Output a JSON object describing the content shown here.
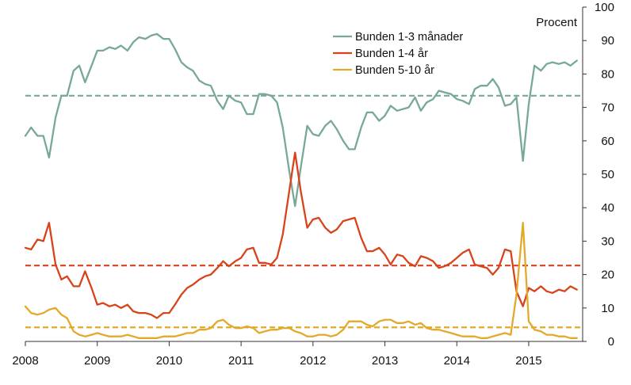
{
  "chart_data": {
    "type": "line",
    "ylabel": "Procent",
    "ylim": [
      0,
      100
    ],
    "y_ticks": [
      "0",
      "10",
      "20",
      "30",
      "40",
      "50",
      "60",
      "70",
      "80",
      "90",
      "100"
    ],
    "x_ticks": [
      "2008",
      "2009",
      "2010",
      "2011",
      "2012",
      "2013",
      "2014",
      "2015"
    ],
    "xlim": [
      2008.0,
      2015.75
    ],
    "grid": false,
    "legend_position": "top-center",
    "series": [
      {
        "name": "Bunden 1-3 månader",
        "color": "#77a898",
        "avg": 73.5,
        "points": [
          [
            2008.0,
            61.5
          ],
          [
            2008.08,
            64
          ],
          [
            2008.17,
            61.5
          ],
          [
            2008.25,
            61.5
          ],
          [
            2008.33,
            55
          ],
          [
            2008.42,
            67
          ],
          [
            2008.5,
            73.5
          ],
          [
            2008.58,
            73.5
          ],
          [
            2008.67,
            81
          ],
          [
            2008.75,
            82.5
          ],
          [
            2008.83,
            77.5
          ],
          [
            2008.92,
            82.5
          ],
          [
            2009.0,
            87
          ],
          [
            2009.08,
            87
          ],
          [
            2009.17,
            88
          ],
          [
            2009.25,
            87.5
          ],
          [
            2009.33,
            88.5
          ],
          [
            2009.42,
            87
          ],
          [
            2009.5,
            89.5
          ],
          [
            2009.58,
            91
          ],
          [
            2009.67,
            90.5
          ],
          [
            2009.75,
            91.5
          ],
          [
            2009.83,
            92
          ],
          [
            2009.92,
            90.5
          ],
          [
            2010.0,
            90.5
          ],
          [
            2010.08,
            87.5
          ],
          [
            2010.17,
            83.5
          ],
          [
            2010.25,
            82
          ],
          [
            2010.33,
            81
          ],
          [
            2010.42,
            78
          ],
          [
            2010.5,
            77
          ],
          [
            2010.58,
            76.5
          ],
          [
            2010.67,
            72
          ],
          [
            2010.75,
            69.5
          ],
          [
            2010.83,
            73.5
          ],
          [
            2010.92,
            72
          ],
          [
            2011.0,
            71.5
          ],
          [
            2011.08,
            68
          ],
          [
            2011.17,
            68
          ],
          [
            2011.25,
            74
          ],
          [
            2011.33,
            74
          ],
          [
            2011.42,
            73.5
          ],
          [
            2011.5,
            71.5
          ],
          [
            2011.58,
            64
          ],
          [
            2011.67,
            51
          ],
          [
            2011.75,
            40.5
          ],
          [
            2011.83,
            52
          ],
          [
            2011.92,
            64.5
          ],
          [
            2012.0,
            62
          ],
          [
            2012.08,
            61.5
          ],
          [
            2012.17,
            64.5
          ],
          [
            2012.25,
            66
          ],
          [
            2012.33,
            63.5
          ],
          [
            2012.42,
            60
          ],
          [
            2012.5,
            57.5
          ],
          [
            2012.58,
            57.5
          ],
          [
            2012.67,
            64
          ],
          [
            2012.75,
            68.5
          ],
          [
            2012.83,
            68.5
          ],
          [
            2012.92,
            66
          ],
          [
            2013.0,
            67.5
          ],
          [
            2013.08,
            70.5
          ],
          [
            2013.17,
            69
          ],
          [
            2013.25,
            69.5
          ],
          [
            2013.33,
            70
          ],
          [
            2013.42,
            73
          ],
          [
            2013.5,
            69
          ],
          [
            2013.58,
            71.5
          ],
          [
            2013.67,
            72.5
          ],
          [
            2013.75,
            75
          ],
          [
            2013.83,
            74.5
          ],
          [
            2013.92,
            74
          ],
          [
            2014.0,
            72.5
          ],
          [
            2014.08,
            72
          ],
          [
            2014.17,
            71
          ],
          [
            2014.25,
            75.5
          ],
          [
            2014.33,
            76.5
          ],
          [
            2014.42,
            76.5
          ],
          [
            2014.5,
            78.5
          ],
          [
            2014.58,
            76
          ],
          [
            2014.67,
            70.5
          ],
          [
            2014.75,
            71
          ],
          [
            2014.83,
            73
          ],
          [
            2014.92,
            54
          ],
          [
            2015.0,
            71
          ],
          [
            2015.08,
            82.5
          ],
          [
            2015.17,
            81
          ],
          [
            2015.25,
            83
          ],
          [
            2015.33,
            83.5
          ],
          [
            2015.42,
            83
          ],
          [
            2015.5,
            83.5
          ],
          [
            2015.58,
            82.5
          ],
          [
            2015.67,
            84
          ]
        ]
      },
      {
        "name": "Bunden 1-4 år",
        "color": "#d9431b",
        "avg": 22.7,
        "points": [
          [
            2008.0,
            28
          ],
          [
            2008.08,
            27.5
          ],
          [
            2008.17,
            30.5
          ],
          [
            2008.25,
            30
          ],
          [
            2008.33,
            35.5
          ],
          [
            2008.42,
            23
          ],
          [
            2008.5,
            18.5
          ],
          [
            2008.58,
            19.5
          ],
          [
            2008.67,
            16.5
          ],
          [
            2008.75,
            16.5
          ],
          [
            2008.83,
            21
          ],
          [
            2008.92,
            16
          ],
          [
            2009.0,
            11
          ],
          [
            2009.08,
            11.5
          ],
          [
            2009.17,
            10.5
          ],
          [
            2009.25,
            11
          ],
          [
            2009.33,
            10
          ],
          [
            2009.42,
            11
          ],
          [
            2009.5,
            9
          ],
          [
            2009.58,
            8.5
          ],
          [
            2009.67,
            8.5
          ],
          [
            2009.75,
            8
          ],
          [
            2009.83,
            7
          ],
          [
            2009.92,
            8.5
          ],
          [
            2010.0,
            8.5
          ],
          [
            2010.08,
            11
          ],
          [
            2010.17,
            14
          ],
          [
            2010.25,
            16
          ],
          [
            2010.33,
            17
          ],
          [
            2010.42,
            18.5
          ],
          [
            2010.5,
            19.5
          ],
          [
            2010.58,
            20
          ],
          [
            2010.67,
            22
          ],
          [
            2010.75,
            24
          ],
          [
            2010.83,
            22.5
          ],
          [
            2010.92,
            24
          ],
          [
            2011.0,
            25
          ],
          [
            2011.08,
            27.5
          ],
          [
            2011.17,
            28
          ],
          [
            2011.25,
            23.5
          ],
          [
            2011.33,
            23.5
          ],
          [
            2011.42,
            23
          ],
          [
            2011.5,
            25
          ],
          [
            2011.58,
            32
          ],
          [
            2011.67,
            45
          ],
          [
            2011.75,
            56.5
          ],
          [
            2011.83,
            45
          ],
          [
            2011.92,
            34
          ],
          [
            2012.0,
            36.5
          ],
          [
            2012.08,
            37
          ],
          [
            2012.17,
            34
          ],
          [
            2012.25,
            32.5
          ],
          [
            2012.33,
            33.5
          ],
          [
            2012.42,
            36
          ],
          [
            2012.5,
            36.5
          ],
          [
            2012.58,
            37
          ],
          [
            2012.67,
            31
          ],
          [
            2012.75,
            27
          ],
          [
            2012.83,
            27
          ],
          [
            2012.92,
            28
          ],
          [
            2013.0,
            26
          ],
          [
            2013.08,
            23
          ],
          [
            2013.17,
            26
          ],
          [
            2013.25,
            25.5
          ],
          [
            2013.33,
            23.5
          ],
          [
            2013.42,
            22.5
          ],
          [
            2013.5,
            25.5
          ],
          [
            2013.58,
            25
          ],
          [
            2013.67,
            24
          ],
          [
            2013.75,
            22
          ],
          [
            2013.83,
            22.5
          ],
          [
            2013.92,
            23.5
          ],
          [
            2014.0,
            25
          ],
          [
            2014.08,
            26.5
          ],
          [
            2014.17,
            27.5
          ],
          [
            2014.25,
            23
          ],
          [
            2014.33,
            22.5
          ],
          [
            2014.42,
            22
          ],
          [
            2014.5,
            20
          ],
          [
            2014.58,
            22
          ],
          [
            2014.67,
            27.5
          ],
          [
            2014.75,
            27
          ],
          [
            2014.83,
            15
          ],
          [
            2014.92,
            10.5
          ],
          [
            2015.0,
            16
          ],
          [
            2015.08,
            15
          ],
          [
            2015.17,
            16.5
          ],
          [
            2015.25,
            15
          ],
          [
            2015.33,
            14.5
          ],
          [
            2015.42,
            15.5
          ],
          [
            2015.5,
            15
          ],
          [
            2015.58,
            16.5
          ],
          [
            2015.67,
            15.5
          ]
        ]
      },
      {
        "name": "Bunden 5-10 år",
        "color": "#e3a92a",
        "avg": 4.2,
        "points": [
          [
            2008.0,
            10.5
          ],
          [
            2008.08,
            8.5
          ],
          [
            2008.17,
            8
          ],
          [
            2008.25,
            8.5
          ],
          [
            2008.33,
            9.5
          ],
          [
            2008.42,
            10
          ],
          [
            2008.5,
            8
          ],
          [
            2008.58,
            7
          ],
          [
            2008.67,
            3
          ],
          [
            2008.75,
            2
          ],
          [
            2008.83,
            1.5
          ],
          [
            2008.92,
            2
          ],
          [
            2009.0,
            2.5
          ],
          [
            2009.08,
            2
          ],
          [
            2009.17,
            1.5
          ],
          [
            2009.25,
            1.5
          ],
          [
            2009.33,
            1.5
          ],
          [
            2009.42,
            2
          ],
          [
            2009.5,
            1.5
          ],
          [
            2009.58,
            1
          ],
          [
            2009.67,
            1
          ],
          [
            2009.75,
            1
          ],
          [
            2009.83,
            1
          ],
          [
            2009.92,
            1.5
          ],
          [
            2010.0,
            1.5
          ],
          [
            2010.08,
            1.5
          ],
          [
            2010.17,
            2
          ],
          [
            2010.25,
            2.5
          ],
          [
            2010.33,
            2.5
          ],
          [
            2010.42,
            3.5
          ],
          [
            2010.5,
            3.5
          ],
          [
            2010.58,
            4
          ],
          [
            2010.67,
            6
          ],
          [
            2010.75,
            6.5
          ],
          [
            2010.83,
            5
          ],
          [
            2010.92,
            4
          ],
          [
            2011.0,
            4
          ],
          [
            2011.08,
            4.5
          ],
          [
            2011.17,
            4
          ],
          [
            2011.25,
            2.5
          ],
          [
            2011.33,
            3
          ],
          [
            2011.42,
            3.5
          ],
          [
            2011.5,
            3.5
          ],
          [
            2011.58,
            4
          ],
          [
            2011.67,
            4
          ],
          [
            2011.75,
            3
          ],
          [
            2011.83,
            2.5
          ],
          [
            2011.92,
            1.5
          ],
          [
            2012.0,
            1.5
          ],
          [
            2012.08,
            2
          ],
          [
            2012.17,
            2
          ],
          [
            2012.25,
            1.5
          ],
          [
            2012.33,
            2
          ],
          [
            2012.42,
            3.5
          ],
          [
            2012.5,
            6
          ],
          [
            2012.58,
            6
          ],
          [
            2012.67,
            6
          ],
          [
            2012.75,
            5
          ],
          [
            2012.83,
            4.5
          ],
          [
            2012.92,
            6
          ],
          [
            2013.0,
            6.5
          ],
          [
            2013.08,
            6.5
          ],
          [
            2013.17,
            5.5
          ],
          [
            2013.25,
            5.5
          ],
          [
            2013.33,
            6
          ],
          [
            2013.42,
            5
          ],
          [
            2013.5,
            5.5
          ],
          [
            2013.58,
            4
          ],
          [
            2013.67,
            3.5
          ],
          [
            2013.75,
            3.5
          ],
          [
            2013.83,
            3
          ],
          [
            2013.92,
            2.5
          ],
          [
            2014.0,
            2
          ],
          [
            2014.08,
            1.5
          ],
          [
            2014.17,
            1.5
          ],
          [
            2014.25,
            1.5
          ],
          [
            2014.33,
            1
          ],
          [
            2014.42,
            1
          ],
          [
            2014.5,
            1.5
          ],
          [
            2014.58,
            2
          ],
          [
            2014.67,
            2.5
          ],
          [
            2014.75,
            2
          ],
          [
            2014.83,
            14
          ],
          [
            2014.92,
            35.5
          ],
          [
            2015.0,
            6
          ],
          [
            2015.08,
            3.5
          ],
          [
            2015.17,
            3
          ],
          [
            2015.25,
            2
          ],
          [
            2015.33,
            2
          ],
          [
            2015.42,
            1.5
          ],
          [
            2015.5,
            1.5
          ],
          [
            2015.58,
            1
          ],
          [
            2015.67,
            1
          ]
        ]
      }
    ]
  }
}
